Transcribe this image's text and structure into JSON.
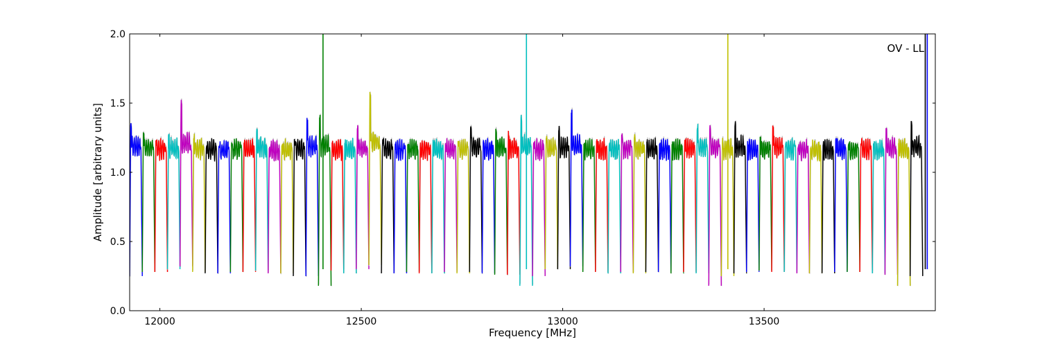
{
  "chart_data": {
    "type": "line",
    "title": "",
    "xlabel": "Frequency [MHz]",
    "ylabel": "Amplitude [arbitrary units]",
    "annotation": "OV - LL",
    "xlim": [
      11925,
      13925
    ],
    "ylim": [
      0.0,
      2.0
    ],
    "xticks": [
      12000,
      12500,
      13000,
      13500
    ],
    "yticks": [
      0.0,
      0.5,
      1.0,
      1.5,
      2.0
    ],
    "ytick_labels": [
      "0.0",
      "0.5",
      "1.0",
      "1.5",
      "2.0"
    ],
    "grid": false,
    "legend": "none",
    "channel_width_mhz": 31.25,
    "color_cycle": [
      "#0000ff",
      "#008000",
      "#ff0000",
      "#00bfbf",
      "#bf00bf",
      "#bfbf00",
      "#000000"
    ],
    "shadow_color": "#bfbfbf",
    "channel_peak_levels": [
      1.37,
      1.3,
      1.24,
      1.3,
      1.53,
      1.28,
      1.22,
      1.22,
      1.23,
      1.24,
      1.32,
      1.2,
      1.21,
      1.25,
      1.4,
      1.42,
      1.24,
      1.24,
      1.35,
      1.58,
      1.24,
      1.21,
      1.23,
      1.22,
      1.24,
      1.22,
      1.23,
      1.35,
      1.24,
      1.33,
      1.3,
      1.42,
      1.22,
      1.27,
      1.35,
      1.46,
      1.24,
      1.24,
      1.22,
      1.29,
      1.28,
      1.26,
      1.24,
      1.23,
      1.24,
      1.35,
      1.35,
      1.25,
      1.38,
      1.24,
      1.27,
      1.35,
      1.23,
      1.21,
      1.2,
      1.23,
      1.28,
      1.22,
      1.24,
      1.21,
      1.33,
      1.25,
      1.38
    ],
    "channel_dip_levels": [
      0.25,
      0.28,
      0.28,
      0.3,
      0.32,
      0.28,
      0.27,
      0.27,
      0.28,
      0.28,
      0.29,
      0.27,
      0.27,
      0.25,
      0.25,
      0.18,
      0.29,
      0.27,
      0.3,
      0.33,
      0.27,
      0.27,
      0.28,
      0.27,
      0.27,
      0.28,
      0.27,
      0.28,
      0.27,
      0.26,
      0.26,
      0.18,
      0.25,
      0.3,
      0.3,
      0.32,
      0.28,
      0.28,
      0.27,
      0.28,
      0.27,
      0.28,
      0.28,
      0.27,
      0.28,
      0.27,
      0.18,
      0.25,
      0.27,
      0.28,
      0.29,
      0.28,
      0.28,
      0.27,
      0.27,
      0.27,
      0.28,
      0.28,
      0.28,
      0.27,
      0.26,
      0.18,
      0.25
    ],
    "spikes": [
      {
        "x": 12405,
        "y": 2.0,
        "color": "#008000"
      },
      {
        "x": 12910,
        "y": 2.0,
        "color": "#00bfbf"
      },
      {
        "x": 13410,
        "y": 2.0,
        "color": "#bfbf00"
      },
      {
        "x": 13900,
        "y": 2.0,
        "color": "#000000"
      },
      {
        "x": 13905,
        "y": 2.0,
        "color": "#0000ff"
      }
    ]
  }
}
